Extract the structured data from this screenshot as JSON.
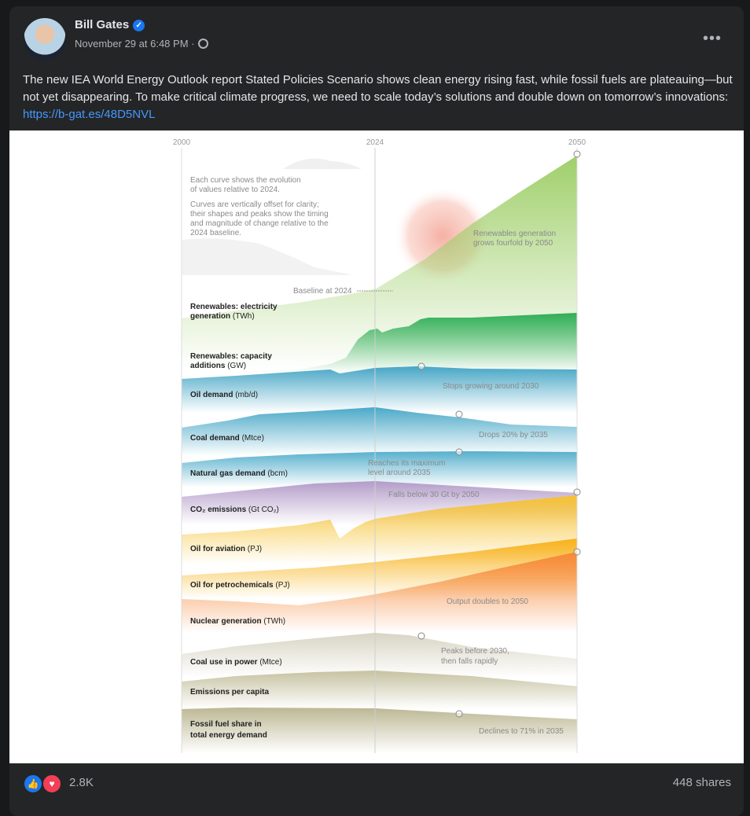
{
  "post": {
    "author": "Bill Gates",
    "verified_icon": "verified-badge-icon",
    "timestamp": "November 29 at 6:48 PM",
    "separator": "·",
    "privacy_icon": "globe-icon",
    "more_label": "•••",
    "text": "The new IEA World Energy Outlook report Stated Policies Scenario shows clean energy rising fast, while fossil fuels are plateauing—but not yet disappearing. To make critical climate progress, we need to scale today’s solutions and double down on tomorrow’s innovations: ",
    "link": "https://b-gat.es/48D5NVL"
  },
  "footer": {
    "reactions": [
      "like-icon",
      "love-icon"
    ],
    "reaction_count": "2.8K",
    "shares": "448 shares"
  },
  "colors": {
    "renewables_generation": "#9fcf6a",
    "renewables_capacity": "#2fae57",
    "oil_demand": "#47a6c6",
    "coal_demand": "#4ba9c8",
    "natural_gas": "#57b0cd",
    "co2": "#b39cc9",
    "aviation": "#f6c233",
    "petrochemicals": "#f8b21c",
    "nuclear": "#f6893a",
    "coal_power": "#d8d5c4",
    "emissions_per_capita": "#c6c2a2",
    "fossil_share": "#bcb793"
  },
  "chart_data": {
    "type": "area",
    "x_ticks": [
      "2000",
      "2024",
      "2050"
    ],
    "notes": [
      "Each curve shows the evolution",
      "of values relative to 2024.",
      "Curves are vertically offset for clarity;",
      "their shapes and peaks show the timing",
      "and magnitude of change relative to the",
      "2024 baseline."
    ],
    "baseline_label": "Baseline at 2024",
    "series": [
      {
        "name": [
          "Renewables: electricity",
          "generation"
        ],
        "unit": "(TWh)"
      },
      {
        "name": [
          "Renewables: capacity",
          "additions"
        ],
        "unit": "(GW)"
      },
      {
        "name": [
          "Oil demand"
        ],
        "unit": "(mb/d)"
      },
      {
        "name": [
          "Coal demand"
        ],
        "unit": "(Mtce)"
      },
      {
        "name": [
          "Natural gas demand"
        ],
        "unit": "(bcm)"
      },
      {
        "name": [
          "CO₂ emissions"
        ],
        "unit": "(Gt CO₂)"
      },
      {
        "name": [
          "Oil for aviation"
        ],
        "unit": "(PJ)"
      },
      {
        "name": [
          "Oil for petrochemicals"
        ],
        "unit": "(PJ)"
      },
      {
        "name": [
          "Nuclear generation"
        ],
        "unit": "(TWh)"
      },
      {
        "name": [
          "Coal use in power"
        ],
        "unit": "(Mtce)"
      },
      {
        "name": [
          "Emissions per capita"
        ],
        "unit": ""
      },
      {
        "name": [
          "Fossil fuel share in",
          "total energy demand"
        ],
        "unit": ""
      }
    ],
    "annotations": [
      [
        "Renewables generation",
        "grows fourfold by 2050"
      ],
      [
        "Stops growing around 2030"
      ],
      [
        "Drops 20% by 2035"
      ],
      [
        "Reaches its maximum",
        "level around 2035"
      ],
      [
        "Falls below 30 Gt by 2050"
      ],
      [
        "Output doubles to 2050"
      ],
      [
        "Peaks before 2030,",
        "then falls rapidly"
      ],
      [
        "Declines to 71% in 2035"
      ]
    ]
  }
}
